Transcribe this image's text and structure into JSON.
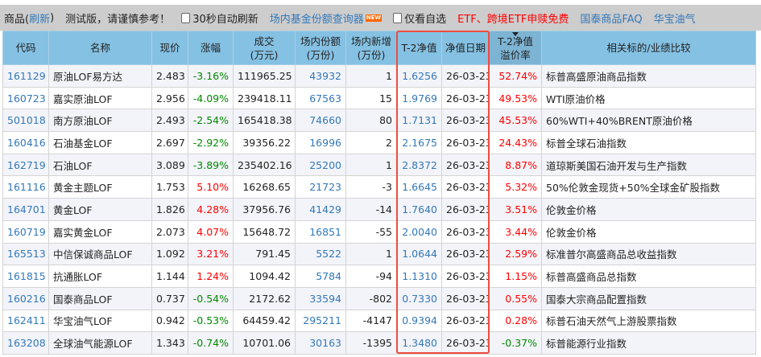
{
  "toolbar": {
    "title": "商品(",
    "refresh": "刷新",
    "title_end": ")",
    "notice": "测试版，请谨慎参考！",
    "auto_refresh": "30秒自动刷新",
    "query_link": "场内基金份额查询器",
    "new_badge": "NEW",
    "only_favorites": "仅看自选",
    "etf_promo": "ETF、跨境ETF申赎免费",
    "faq_link": "国泰商品FAQ",
    "huabao_link": "华宝油气"
  },
  "colors": {
    "header_bg": "#85c1e3",
    "up": "#ff0000",
    "down": "#008800",
    "link": "#3378b8",
    "highlight_box": "#ef4c3f"
  },
  "columns": [
    [
      "代码"
    ],
    [
      "名称"
    ],
    [
      "现价"
    ],
    [
      "涨幅"
    ],
    [
      "成交",
      "(万元)"
    ],
    [
      "场内份额",
      "(万份)"
    ],
    [
      "场内新增",
      "(万份)"
    ],
    [
      "T-2净值"
    ],
    [
      "净值日期"
    ],
    [
      "T-2净值",
      "溢价率"
    ],
    [
      "相关标的/业绩比较"
    ]
  ],
  "rows": [
    [
      "161129",
      "原油LOF易方达",
      "2.483",
      "-3.16%",
      "111965.25",
      "43932",
      "1",
      "1.6256",
      "26-03-23",
      "52.74%",
      "标普高盛原油商品指数"
    ],
    [
      "160723",
      "嘉实原油LOF",
      "2.956",
      "-4.09%",
      "239418.11",
      "67563",
      "15",
      "1.9769",
      "26-03-23",
      "49.53%",
      "WTI原油价格"
    ],
    [
      "501018",
      "南方原油LOF",
      "2.493",
      "-2.54%",
      "165418.38",
      "74660",
      "80",
      "1.7131",
      "26-03-23",
      "45.53%",
      "60%WTI+40%BRENT原油价格"
    ],
    [
      "160416",
      "石油基金LOF",
      "2.697",
      "-2.92%",
      "39356.22",
      "16996",
      "2",
      "2.1675",
      "26-03-23",
      "24.43%",
      "标普全球石油指数"
    ],
    [
      "162719",
      "石油LOF",
      "3.089",
      "-3.89%",
      "235402.16",
      "25200",
      "1",
      "2.8372",
      "26-03-23",
      "8.87%",
      "道琼斯美国石油开发与生产指数"
    ],
    [
      "161116",
      "黄金主题LOF",
      "1.753",
      "5.10%",
      "16268.65",
      "21723",
      "-3",
      "1.6645",
      "26-03-23",
      "5.32%",
      "50%伦敦金现货+50%全球金矿股指数"
    ],
    [
      "164701",
      "黄金LOF",
      "1.826",
      "4.28%",
      "37956.76",
      "41429",
      "-14",
      "1.7640",
      "26-03-23",
      "3.51%",
      "伦敦金价格"
    ],
    [
      "160719",
      "嘉实黄金LOF",
      "2.073",
      "4.07%",
      "15648.72",
      "16851",
      "-55",
      "2.0040",
      "26-03-23",
      "3.44%",
      "伦敦金价格"
    ],
    [
      "165513",
      "中信保诚商品LOF",
      "1.092",
      "3.21%",
      "791.45",
      "5522",
      "1",
      "1.0644",
      "26-03-23",
      "2.59%",
      "标准普尔高盛商品总收益指数"
    ],
    [
      "161815",
      "抗通胀LOF",
      "1.144",
      "1.24%",
      "1094.42",
      "5784",
      "-94",
      "1.1310",
      "26-03-23",
      "1.15%",
      "标普高盛商品总指数"
    ],
    [
      "160216",
      "国泰商品LOF",
      "0.737",
      "-0.54%",
      "2172.62",
      "33594",
      "-802",
      "0.7330",
      "26-03-23",
      "0.55%",
      "国泰大宗商品配置指数"
    ],
    [
      "162411",
      "华宝油气LOF",
      "0.942",
      "-0.53%",
      "64459.42",
      "295211",
      "-4147",
      "0.9394",
      "26-03-23",
      "0.28%",
      "标普石油天然气上游股票指数"
    ],
    [
      "163208",
      "全球油气能源LOF",
      "1.343",
      "-0.74%",
      "10701.06",
      "30163",
      "-1395",
      "1.3480",
      "26-03-23",
      "-0.37%",
      "标普能源行业指数"
    ]
  ]
}
